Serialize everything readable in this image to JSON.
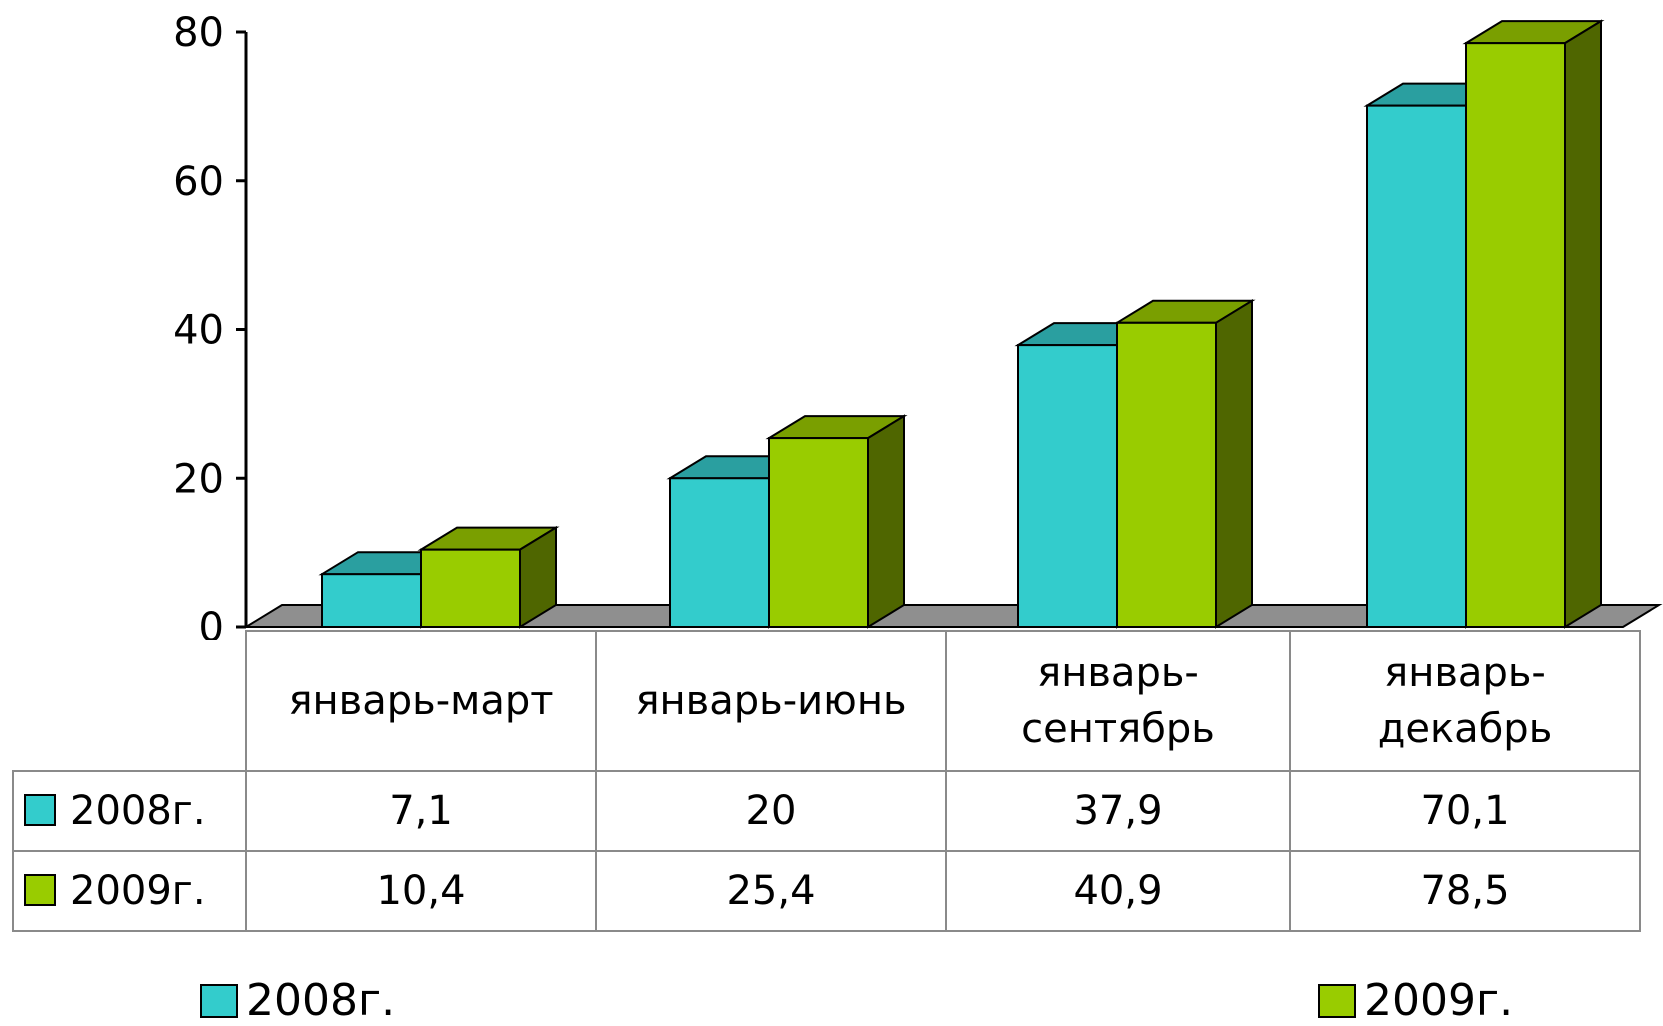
{
  "chart_data": {
    "type": "bar",
    "categories": [
      "январь-март",
      "январь-июнь",
      "январь-сентябрь",
      "январь-декабрь"
    ],
    "category_lines": [
      [
        "январь-март"
      ],
      [
        "январь-июнь"
      ],
      [
        "январь-",
        "сентябрь"
      ],
      [
        "январь-",
        "декабрь"
      ]
    ],
    "series": [
      {
        "name": "2008г.",
        "values": [
          7.1,
          20,
          37.9,
          70.1
        ],
        "labels": [
          "7,1",
          "20",
          "37,9",
          "70,1"
        ],
        "color": "#33CCCC"
      },
      {
        "name": "2009г.",
        "values": [
          10.4,
          25.4,
          40.9,
          78.5
        ],
        "labels": [
          "10,4",
          "25,4",
          "40,9",
          "78,5"
        ],
        "color": "#99CC00"
      }
    ],
    "yticks": [
      "0",
      "20",
      "40",
      "60",
      "80"
    ],
    "ylim": [
      0,
      80
    ],
    "grid": false,
    "three_d": true,
    "data_table": true,
    "legend": "bottom"
  },
  "colors": {
    "series1_front": "#33CCCC",
    "series1_top": "#2A9FA0",
    "series1_side": "#1F7A7B",
    "series2_front": "#99CC00",
    "series2_top": "#7A9F00",
    "series2_side": "#4F6600",
    "floor": "#8F8F8F"
  }
}
